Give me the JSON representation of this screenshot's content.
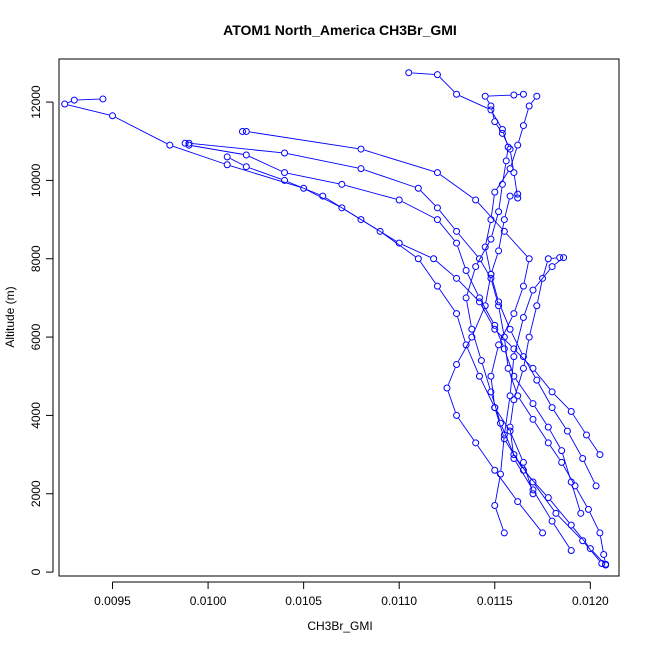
{
  "chart_data": {
    "type": "scatter",
    "title": "ATOM1 North_America CH3Br_GMI",
    "xlabel": "CH3Br_GMI",
    "ylabel": "Altitude (m)",
    "xlim": [
      0.00922,
      0.01215
    ],
    "ylim": [
      -100,
      13100
    ],
    "x_ticks": [
      {
        "value": 0.0095,
        "label": "0.0095"
      },
      {
        "value": 0.01,
        "label": "0.0100"
      },
      {
        "value": 0.0105,
        "label": "0.0105"
      },
      {
        "value": 0.011,
        "label": "0.0110"
      },
      {
        "value": 0.0115,
        "label": "0.0115"
      },
      {
        "value": 0.012,
        "label": "0.0120"
      }
    ],
    "y_ticks": [
      {
        "value": 0,
        "label": "0"
      },
      {
        "value": 2000,
        "label": "2000"
      },
      {
        "value": 4000,
        "label": "4000"
      },
      {
        "value": 6000,
        "label": "6000"
      },
      {
        "value": 8000,
        "label": "8000"
      },
      {
        "value": 10000,
        "label": "10000"
      },
      {
        "value": 12000,
        "label": "12000"
      }
    ],
    "marker": "open-circle",
    "connected": true,
    "color": "#0000ff",
    "grid": false,
    "series": [
      {
        "points": [
          [
            0.01208,
            200
          ],
          [
            0.01207,
            450
          ],
          [
            0.01205,
            1000
          ],
          [
            0.01199,
            1600
          ],
          [
            0.01192,
            2200
          ],
          [
            0.01185,
            2800
          ],
          [
            0.01178,
            3300
          ],
          [
            0.0117,
            3900
          ],
          [
            0.01162,
            4500
          ],
          [
            0.01157,
            5200
          ],
          [
            0.01155,
            6000
          ],
          [
            0.01152,
            6800
          ],
          [
            0.01148,
            7500
          ],
          [
            0.01142,
            8000
          ],
          [
            0.0113,
            8700
          ],
          [
            0.0112,
            9300
          ],
          [
            0.0111,
            9800
          ],
          [
            0.0108,
            10300
          ],
          [
            0.0104,
            10700
          ],
          [
            0.0099,
            10950
          ],
          [
            0.00988,
            10950
          ]
        ]
      },
      {
        "points": [
          [
            0.01208,
            180
          ],
          [
            0.012,
            600
          ],
          [
            0.0119,
            1200
          ],
          [
            0.01178,
            1900
          ],
          [
            0.01165,
            2600
          ],
          [
            0.01155,
            3400
          ],
          [
            0.0115,
            4200
          ],
          [
            0.01148,
            5000
          ],
          [
            0.01152,
            5800
          ],
          [
            0.0116,
            6600
          ],
          [
            0.01165,
            7300
          ],
          [
            0.01168,
            8000
          ],
          [
            0.01155,
            8700
          ],
          [
            0.0114,
            9500
          ],
          [
            0.0112,
            10200
          ],
          [
            0.0108,
            10800
          ],
          [
            0.0102,
            11250
          ],
          [
            0.01018,
            11250
          ]
        ]
      },
      {
        "points": [
          [
            0.01206,
            220
          ],
          [
            0.01196,
            800
          ],
          [
            0.01182,
            1500
          ],
          [
            0.0117,
            2300
          ],
          [
            0.0116,
            3000
          ],
          [
            0.01153,
            3800
          ],
          [
            0.01148,
            4600
          ],
          [
            0.01143,
            5400
          ],
          [
            0.01138,
            6200
          ],
          [
            0.01135,
            7000
          ],
          [
            0.0114,
            7800
          ],
          [
            0.01148,
            8500
          ],
          [
            0.01152,
            9200
          ],
          [
            0.01154,
            9900
          ],
          [
            0.01156,
            10500
          ],
          [
            0.01157,
            10850
          ],
          [
            0.01154,
            11300
          ],
          [
            0.01148,
            11800
          ],
          [
            0.0113,
            12200
          ],
          [
            0.0112,
            12700
          ],
          [
            0.01105,
            12750
          ]
        ]
      },
      {
        "points": [
          [
            0.0119,
            550
          ],
          [
            0.0118,
            1300
          ],
          [
            0.0117,
            2100
          ],
          [
            0.0116,
            2900
          ],
          [
            0.01158,
            3700
          ],
          [
            0.0116,
            4400
          ],
          [
            0.01165,
            5200
          ],
          [
            0.01168,
            6000
          ],
          [
            0.01172,
            6800
          ],
          [
            0.01175,
            7500
          ],
          [
            0.01178,
            8000
          ],
          [
            0.01184,
            8030
          ],
          [
            0.01186,
            8030
          ],
          [
            0.0118,
            7800
          ],
          [
            0.0117,
            7200
          ],
          [
            0.01165,
            6500
          ],
          [
            0.0116,
            5500
          ],
          [
            0.01158,
            4500
          ],
          [
            0.01155,
            3500
          ],
          [
            0.01153,
            2500
          ],
          [
            0.0115,
            1700
          ],
          [
            0.01155,
            1000
          ]
        ]
      },
      {
        "points": [
          [
            0.01175,
            1000
          ],
          [
            0.01162,
            1800
          ],
          [
            0.0115,
            2600
          ],
          [
            0.0114,
            3300
          ],
          [
            0.0113,
            4000
          ],
          [
            0.01125,
            4700
          ],
          [
            0.0113,
            5300
          ],
          [
            0.01138,
            6000
          ],
          [
            0.01145,
            6800
          ],
          [
            0.01148,
            7600
          ],
          [
            0.01152,
            8200
          ],
          [
            0.01155,
            9000
          ],
          [
            0.01158,
            9600
          ],
          [
            0.01162,
            9650
          ],
          [
            0.01162,
            9550
          ],
          [
            0.0116,
            10200
          ],
          [
            0.01158,
            10800
          ],
          [
            0.01154,
            11200
          ],
          [
            0.0115,
            11500
          ],
          [
            0.01148,
            11900
          ],
          [
            0.01145,
            12150
          ],
          [
            0.0116,
            12180
          ],
          [
            0.01165,
            12200
          ]
        ]
      },
      {
        "points": [
          [
            0.0117,
            2000
          ],
          [
            0.01165,
            2800
          ],
          [
            0.01158,
            3600
          ],
          [
            0.0115,
            4200
          ],
          [
            0.01142,
            5000
          ],
          [
            0.01135,
            5800
          ],
          [
            0.0113,
            6600
          ],
          [
            0.0112,
            7300
          ],
          [
            0.0111,
            8000
          ],
          [
            0.0109,
            8700
          ],
          [
            0.0107,
            9300
          ],
          [
            0.0105,
            9800
          ],
          [
            0.0101,
            10400
          ],
          [
            0.0098,
            10900
          ],
          [
            0.0095,
            11650
          ],
          [
            0.00925,
            11950
          ],
          [
            0.0093,
            12050
          ],
          [
            0.00945,
            12080
          ]
        ]
      },
      {
        "points": [
          [
            0.01195,
            1500
          ],
          [
            0.0119,
            2300
          ],
          [
            0.01185,
            3100
          ],
          [
            0.01178,
            3700
          ],
          [
            0.0117,
            4300
          ],
          [
            0.0116,
            5000
          ],
          [
            0.01155,
            5700
          ],
          [
            0.0115,
            6300
          ],
          [
            0.01142,
            7000
          ],
          [
            0.01135,
            7700
          ],
          [
            0.0113,
            8400
          ],
          [
            0.0112,
            9000
          ],
          [
            0.011,
            9500
          ],
          [
            0.0107,
            9900
          ],
          [
            0.0104,
            10200
          ],
          [
            0.0102,
            10650
          ],
          [
            0.0099,
            10900
          ]
        ]
      },
      {
        "points": [
          [
            0.01203,
            2200
          ],
          [
            0.01196,
            2900
          ],
          [
            0.01188,
            3600
          ],
          [
            0.0118,
            4200
          ],
          [
            0.01172,
            4900
          ],
          [
            0.01165,
            5500
          ],
          [
            0.01158,
            6200
          ],
          [
            0.01152,
            6900
          ],
          [
            0.01148,
            7600
          ],
          [
            0.01145,
            8300
          ],
          [
            0.01148,
            9000
          ],
          [
            0.0115,
            9700
          ],
          [
            0.01158,
            10300
          ],
          [
            0.01162,
            10900
          ],
          [
            0.01165,
            11400
          ],
          [
            0.01168,
            11900
          ],
          [
            0.01172,
            12150
          ]
        ]
      },
      {
        "points": [
          [
            0.01205,
            3000
          ],
          [
            0.01198,
            3500
          ],
          [
            0.0119,
            4100
          ],
          [
            0.0118,
            4600
          ],
          [
            0.0117,
            5200
          ],
          [
            0.0116,
            5700
          ],
          [
            0.0115,
            6200
          ],
          [
            0.01142,
            6900
          ],
          [
            0.0113,
            7500
          ],
          [
            0.01118,
            8000
          ],
          [
            0.011,
            8400
          ],
          [
            0.0108,
            9000
          ],
          [
            0.0106,
            9600
          ],
          [
            0.0104,
            10000
          ],
          [
            0.0102,
            10350
          ],
          [
            0.0101,
            10600
          ]
        ]
      }
    ]
  }
}
